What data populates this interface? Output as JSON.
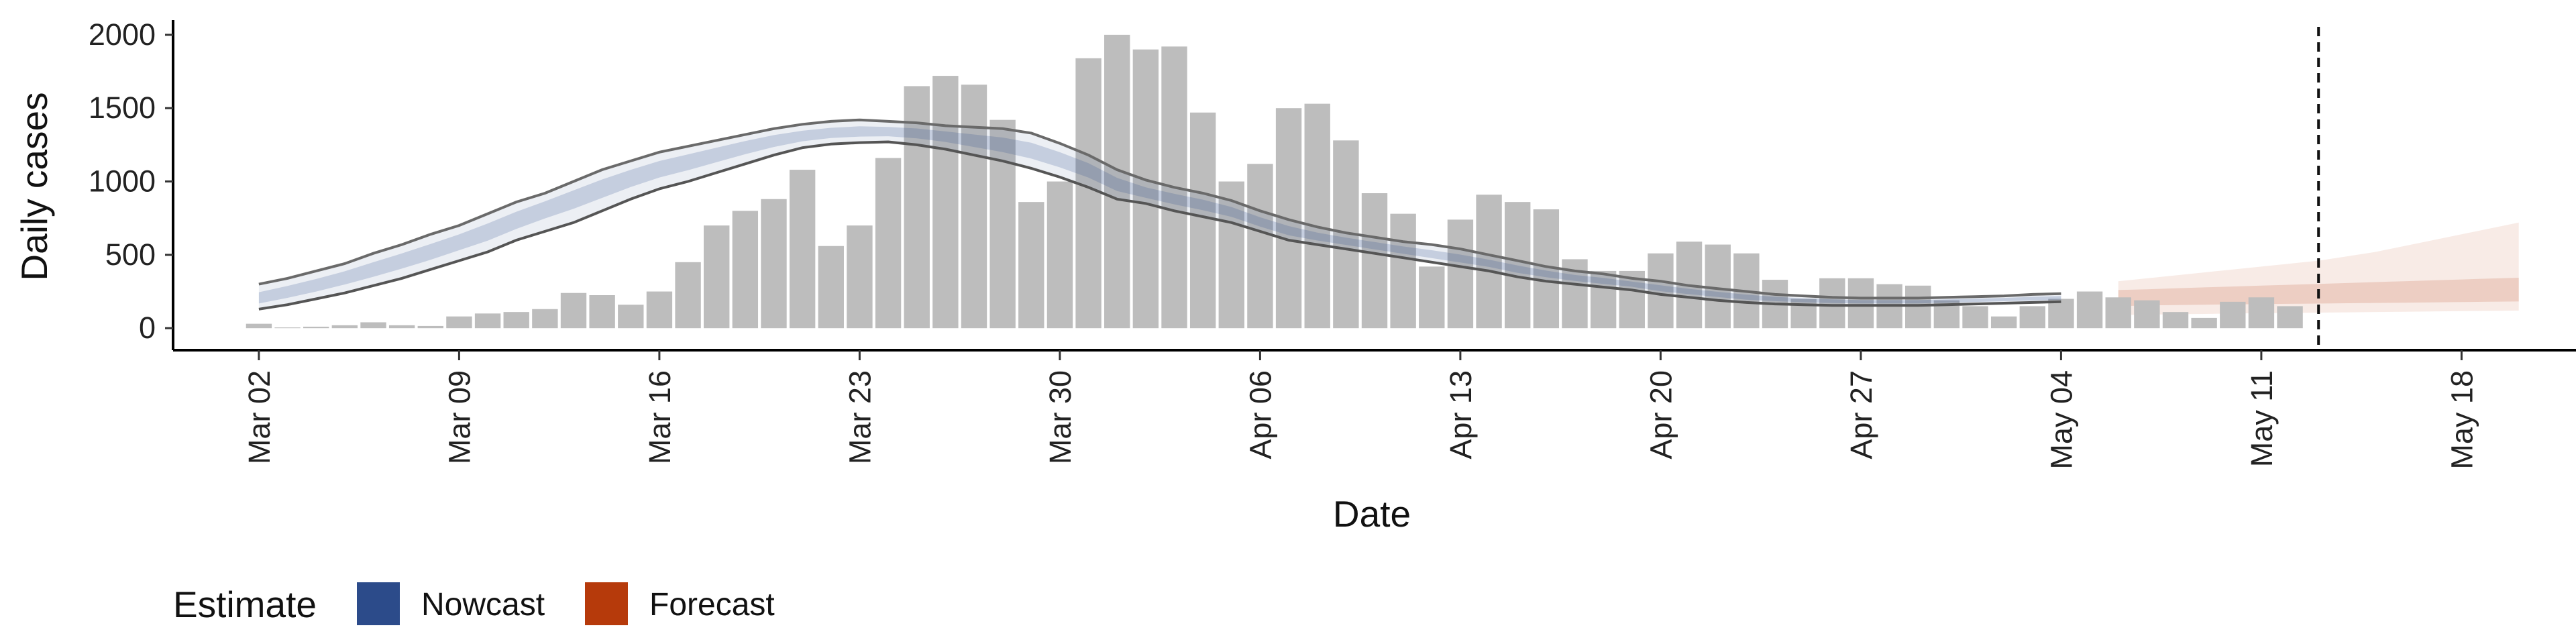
{
  "chart_data": {
    "type": "bar",
    "xlabel": "Date",
    "ylabel": "Daily cases",
    "ylim": [
      -150,
      2100
    ],
    "y_ticks": [
      0,
      500,
      1000,
      1500,
      2000
    ],
    "x_ticks": [
      "Mar 02",
      "Mar 09",
      "Mar 16",
      "Mar 23",
      "Mar 30",
      "Apr 06",
      "Apr 13",
      "Apr 20",
      "Apr 27",
      "May 04",
      "May 11",
      "May 18"
    ],
    "x_range": [
      "2020-02-28",
      "2020-05-22"
    ],
    "bars": {
      "start_date": "2020-03-02",
      "values": [
        30,
        5,
        10,
        20,
        40,
        20,
        15,
        80,
        100,
        110,
        130,
        240,
        225,
        160,
        250,
        450,
        700,
        800,
        880,
        1080,
        560,
        700,
        1160,
        1650,
        1720,
        1660,
        1420,
        860,
        1000,
        1840,
        2000,
        1900,
        1920,
        1470,
        1000,
        1120,
        1500,
        1530,
        1280,
        920,
        780,
        420,
        740,
        910,
        860,
        810,
        470,
        390,
        390,
        510,
        590,
        570,
        510,
        330,
        200,
        340,
        340,
        300,
        290,
        190,
        150,
        80,
        150,
        200,
        250,
        210,
        190,
        110,
        70,
        180,
        210,
        150
      ],
      "color": "#bdbdbd"
    },
    "series": [
      {
        "name": "Nowcast",
        "color": "#2c4b8a",
        "start_date": "2020-03-02",
        "median": [
          200,
          245,
          290,
          345,
          400,
          460,
          520,
          590,
          660,
          740,
          820,
          890,
          960,
          1030,
          1090,
          1140,
          1190,
          1240,
          1280,
          1310,
          1330,
          1340,
          1340,
          1330,
          1310,
          1280,
          1250,
          1210,
          1150,
          1080,
          980,
          920,
          880,
          840,
          790,
          720,
          660,
          620,
          590,
          560,
          530,
          500,
          470,
          440,
          400,
          370,
          340,
          320,
          300,
          270,
          250,
          230,
          210,
          200,
          190,
          185,
          180,
          180,
          180,
          185,
          190,
          195,
          200,
          205
        ],
        "outer_lower": [
          130,
          160,
          200,
          240,
          290,
          340,
          400,
          460,
          520,
          600,
          660,
          720,
          800,
          880,
          950,
          1000,
          1060,
          1120,
          1180,
          1230,
          1255,
          1265,
          1270,
          1250,
          1220,
          1180,
          1140,
          1090,
          1030,
          960,
          880,
          850,
          800,
          760,
          720,
          660,
          600,
          570,
          540,
          510,
          480,
          450,
          420,
          390,
          350,
          320,
          300,
          280,
          260,
          230,
          210,
          190,
          175,
          165,
          160,
          155,
          155,
          155,
          155,
          160,
          165,
          170,
          175,
          180
        ],
        "outer_upper": [
          300,
          340,
          390,
          440,
          510,
          570,
          640,
          700,
          780,
          860,
          920,
          1000,
          1080,
          1140,
          1200,
          1240,
          1280,
          1320,
          1360,
          1390,
          1410,
          1420,
          1410,
          1400,
          1380,
          1370,
          1360,
          1330,
          1260,
          1180,
          1080,
          1010,
          960,
          920,
          870,
          800,
          740,
          690,
          650,
          620,
          590,
          570,
          540,
          500,
          460,
          420,
          390,
          370,
          340,
          320,
          290,
          270,
          250,
          230,
          220,
          210,
          205,
          205,
          205,
          210,
          215,
          220,
          230,
          235
        ]
      },
      {
        "name": "Forecast",
        "color": "#b63a0b",
        "start_date": "2020-05-06",
        "median": [
          205,
          210,
          215,
          218,
          220,
          222,
          225,
          228,
          230,
          233,
          236,
          238,
          241,
          244,
          247
        ],
        "inner_lower": [
          150,
          155,
          158,
          160,
          162,
          164,
          166,
          168,
          170,
          172,
          174,
          176,
          178,
          180,
          182
        ],
        "inner_upper": [
          260,
          265,
          272,
          278,
          284,
          290,
          296,
          302,
          308,
          314,
          320,
          326,
          332,
          338,
          344
        ],
        "outer_lower": [
          90,
          92,
          95,
          97,
          100,
          102,
          104,
          106,
          108,
          110,
          112,
          114,
          116,
          118,
          120
        ],
        "outer_upper": [
          320,
          340,
          360,
          380,
          400,
          420,
          440,
          460,
          490,
          520,
          560,
          600,
          640,
          680,
          720
        ]
      }
    ],
    "vline": {
      "date": "2020-05-13",
      "style": "dashed"
    },
    "legend": {
      "title": "Estimate",
      "position": "bottom-left",
      "items": [
        {
          "label": "Nowcast",
          "color": "#2c4b8a"
        },
        {
          "label": "Forecast",
          "color": "#b63a0b"
        }
      ]
    },
    "grid": false
  }
}
